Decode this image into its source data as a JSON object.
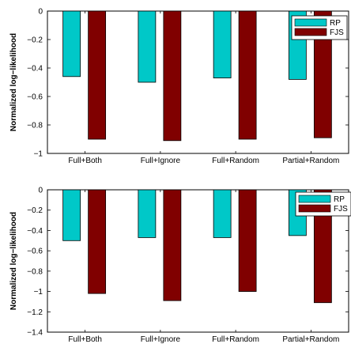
{
  "chart_data": [
    {
      "type": "bar",
      "categories": [
        "Full+Both",
        "Full+Ignore",
        "Full+Random",
        "Partial+Random"
      ],
      "series": [
        {
          "name": "RP",
          "values": [
            -0.46,
            -0.5,
            -0.47,
            -0.48
          ],
          "color": "#00C8C8"
        },
        {
          "name": "FJS",
          "values": [
            -0.9,
            -0.91,
            -0.9,
            -0.89
          ],
          "color": "#800000"
        }
      ],
      "ylabel": "Normalized log−likelihood",
      "ylim": [
        -1,
        0
      ],
      "yticks": [
        0,
        -0.2,
        -0.4,
        -0.6,
        -0.8,
        -1
      ],
      "ytick_labels": [
        "0",
        "−0.2",
        "−0.4",
        "−0.6",
        "−0.8",
        "−1"
      ],
      "grid": false,
      "legend": "top-right"
    },
    {
      "type": "bar",
      "categories": [
        "Full+Both",
        "Full+Ignore",
        "Full+Random",
        "Partial+Random"
      ],
      "series": [
        {
          "name": "RP",
          "values": [
            -0.5,
            -0.47,
            -0.47,
            -0.45
          ],
          "color": "#00C8C8"
        },
        {
          "name": "FJS",
          "values": [
            -1.02,
            -1.09,
            -1.0,
            -1.11
          ],
          "color": "#800000"
        }
      ],
      "ylabel": "Normalized log−likelihood",
      "ylim": [
        -1.4,
        0
      ],
      "yticks": [
        0,
        -0.2,
        -0.4,
        -0.6,
        -0.8,
        -1,
        -1.2,
        -1.4
      ],
      "ytick_labels": [
        "0",
        "−0.2",
        "−0.4",
        "−0.6",
        "−0.8",
        "−1",
        "−1.2",
        "−1.4"
      ],
      "grid": false,
      "legend": "top-right"
    }
  ]
}
